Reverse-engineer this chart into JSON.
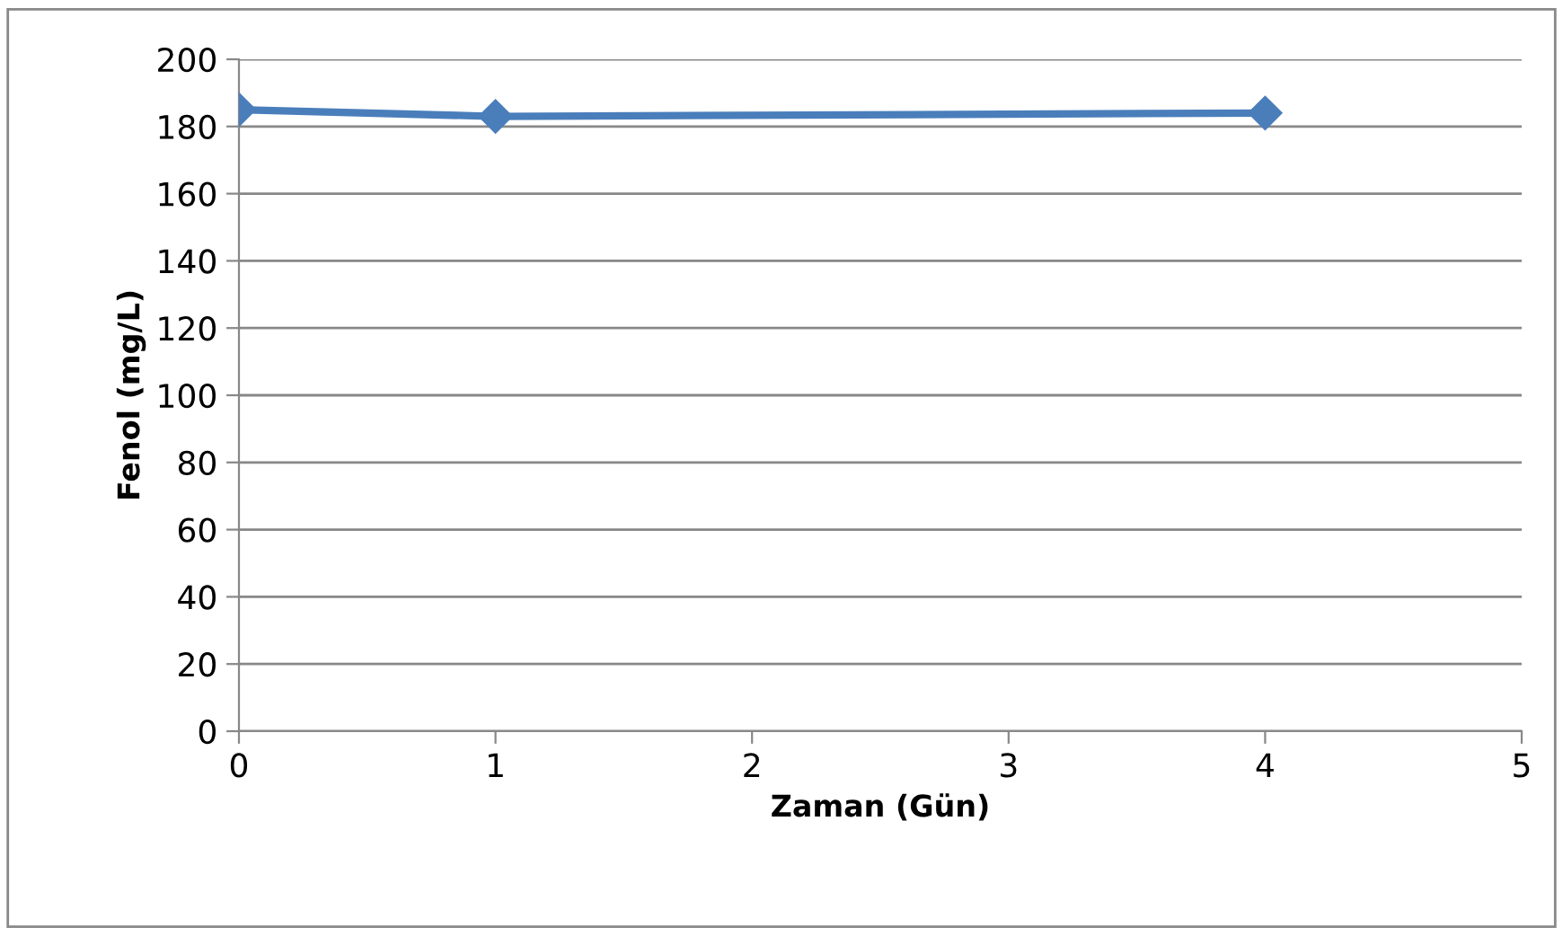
{
  "chart_data": {
    "type": "line",
    "xlabel": "Zaman (Gün)",
    "ylabel": "Fenol (mg/L)",
    "x": [
      0,
      1,
      4
    ],
    "series": [
      {
        "color": "#4a7ebb",
        "values": [
          185,
          183,
          184
        ]
      }
    ],
    "xlim": [
      0,
      5
    ],
    "xticks": [
      0,
      1,
      2,
      3,
      4,
      5
    ],
    "ylim": [
      0,
      200
    ],
    "yticks": [
      0,
      20,
      40,
      60,
      80,
      100,
      120,
      140,
      160,
      180,
      200
    ],
    "grid": "y",
    "marker": "diamond",
    "line_style": "solid",
    "legend": false
  }
}
